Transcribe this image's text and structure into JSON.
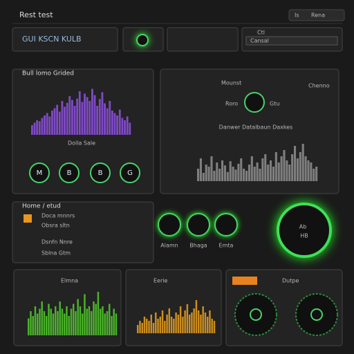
{
  "header": {
    "title": "Rest test",
    "menu": [
      "Is",
      "Rena"
    ]
  },
  "top_bar": {
    "search_text": "GUI KSCN KULB",
    "field_label": "Ctl",
    "field_text": "Cansal"
  },
  "left_panel": {
    "title": "Bull lomo Grided",
    "caption": "Dolla Sale",
    "gauges": [
      "M",
      "B",
      "B",
      "G"
    ]
  },
  "right_panel": {
    "title": "Mounst",
    "menu": "Chenno",
    "labels": [
      "Roro",
      "Gtu"
    ],
    "caption": "Danwer Datalbaun Daxkes"
  },
  "list_panel": {
    "title": "Home / etud",
    "rows": [
      "Doca mnnrs",
      "Obsra sltn",
      "Dsnfn Nnre",
      "Sblna Gtm"
    ]
  },
  "mid_gauges": {
    "labels": [
      "Alamn",
      "Bhaga",
      "Emta"
    ]
  },
  "ring": {
    "lines": [
      "Ab",
      "HB"
    ]
  },
  "bottom": {
    "titles": [
      "Elmna",
      "Eerie",
      "Dutpe"
    ]
  },
  "charts": [
    {
      "color": "#8a4fd8",
      "ylim": [
        0,
        100
      ],
      "values": [
        20,
        25,
        30,
        28,
        35,
        40,
        45,
        38,
        50,
        55,
        62,
        48,
        70,
        58,
        66,
        80,
        72,
        60,
        75,
        90,
        68,
        85,
        78,
        70,
        95,
        82,
        60,
        74,
        88,
        65,
        55,
        70,
        50,
        45,
        40,
        52,
        35,
        30,
        38,
        25
      ]
    },
    {
      "color": "#8a8a8a",
      "ylim": [
        0,
        100
      ],
      "values": [
        30,
        55,
        20,
        40,
        35,
        60,
        25,
        45,
        30,
        50,
        38,
        22,
        48,
        35,
        28,
        42,
        55,
        30,
        25,
        40,
        60,
        35,
        45,
        30,
        55,
        65,
        40,
        50,
        35,
        70,
        45,
        60,
        75,
        50,
        40,
        65,
        85,
        55,
        70,
        90,
        60,
        50,
        45,
        30,
        35
      ]
    },
    {
      "color": "#4fc52a",
      "ylim": [
        0,
        100
      ],
      "values": [
        35,
        50,
        40,
        60,
        45,
        55,
        70,
        50,
        40,
        65,
        55,
        45,
        60,
        50,
        70,
        55,
        45,
        60,
        40,
        55,
        65,
        50,
        75,
        60,
        45,
        85,
        55,
        60,
        50,
        70,
        65,
        90,
        55,
        60,
        45,
        50,
        65,
        40,
        55,
        45
      ]
    },
    {
      "color": "#e09a1e",
      "ylim": [
        0,
        100
      ],
      "values": [
        20,
        30,
        25,
        40,
        35,
        30,
        45,
        25,
        50,
        35,
        40,
        55,
        30,
        45,
        60,
        40,
        35,
        50,
        45,
        65,
        40,
        55,
        70,
        45,
        50,
        60,
        80,
        55,
        45,
        65,
        50,
        40,
        55,
        35,
        30
      ]
    }
  ]
}
